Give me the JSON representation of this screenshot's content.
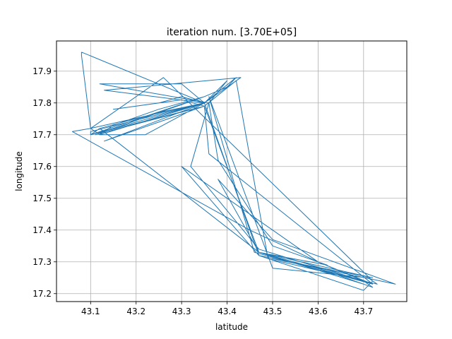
{
  "chart_data": {
    "type": "line",
    "title": "iteration num. [3.70E+05]",
    "xlabel": "latitude",
    "ylabel": "longitude",
    "xlim": [
      43.025,
      43.795
    ],
    "ylim": [
      17.175,
      17.995
    ],
    "x_ticks": [
      "43.1",
      "43.2",
      "43.3",
      "43.4",
      "43.5",
      "43.6",
      "43.7"
    ],
    "y_ticks": [
      "17.2",
      "17.3",
      "17.4",
      "17.5",
      "17.6",
      "17.7",
      "17.8",
      "17.9"
    ],
    "grid": true,
    "line_color": "#1f77b4",
    "series": [
      {
        "x": [
          43.08,
          43.08,
          43.1,
          43.12,
          43.15,
          43.25,
          43.35,
          43.4,
          43.42,
          43.35,
          43.1,
          43.12,
          43.25,
          43.35,
          43.3,
          43.12,
          43.36,
          43.4,
          43.35,
          43.1,
          43.06,
          43.45,
          43.6,
          43.7,
          43.72,
          43.7,
          43.47,
          43.35,
          43.1,
          43.1,
          43.35,
          43.3,
          43.25,
          43.15,
          43.3,
          43.35,
          43.36,
          43.72,
          43.7,
          43.47,
          43.32,
          43.36,
          43.38,
          43.5,
          43.62,
          43.47,
          43.72,
          43.5,
          43.6,
          43.72,
          43.7,
          43.47,
          43.35,
          43.11,
          43.35,
          43.1,
          43.12,
          43.47,
          43.38,
          43.5,
          43.77,
          43.47,
          43.35,
          43.12,
          43.22,
          43.35,
          43.43,
          43.13,
          43.35,
          43.1,
          43.26,
          43.72,
          43.7,
          43.47,
          43.3,
          43.6,
          43.72,
          43.46,
          43.36,
          43.5,
          43.71,
          43.73,
          43.49,
          43.42,
          43.35,
          43.13,
          43.35,
          43.1,
          43.35,
          43.08
        ],
        "y": [
          17.96,
          17.95,
          17.72,
          17.7,
          17.73,
          17.78,
          17.82,
          17.85,
          17.88,
          17.8,
          17.7,
          17.72,
          17.77,
          17.8,
          17.86,
          17.86,
          17.8,
          17.87,
          17.8,
          17.72,
          17.71,
          17.4,
          17.3,
          17.24,
          17.22,
          17.23,
          17.33,
          17.79,
          17.7,
          17.71,
          17.8,
          17.82,
          17.8,
          17.78,
          17.81,
          17.79,
          17.64,
          17.23,
          17.24,
          17.34,
          17.6,
          17.8,
          17.62,
          17.35,
          17.29,
          17.33,
          17.25,
          17.31,
          17.28,
          17.22,
          17.24,
          17.33,
          17.79,
          17.7,
          17.82,
          17.7,
          17.72,
          17.33,
          17.56,
          17.37,
          17.23,
          17.32,
          17.8,
          17.7,
          17.7,
          17.8,
          17.88,
          17.84,
          17.8,
          17.72,
          17.88,
          17.24,
          17.21,
          17.32,
          17.6,
          17.3,
          17.23,
          17.33,
          17.82,
          17.28,
          17.25,
          17.23,
          17.31,
          17.87,
          17.79,
          17.68,
          17.8,
          17.7,
          17.8,
          17.96
        ]
      }
    ]
  }
}
